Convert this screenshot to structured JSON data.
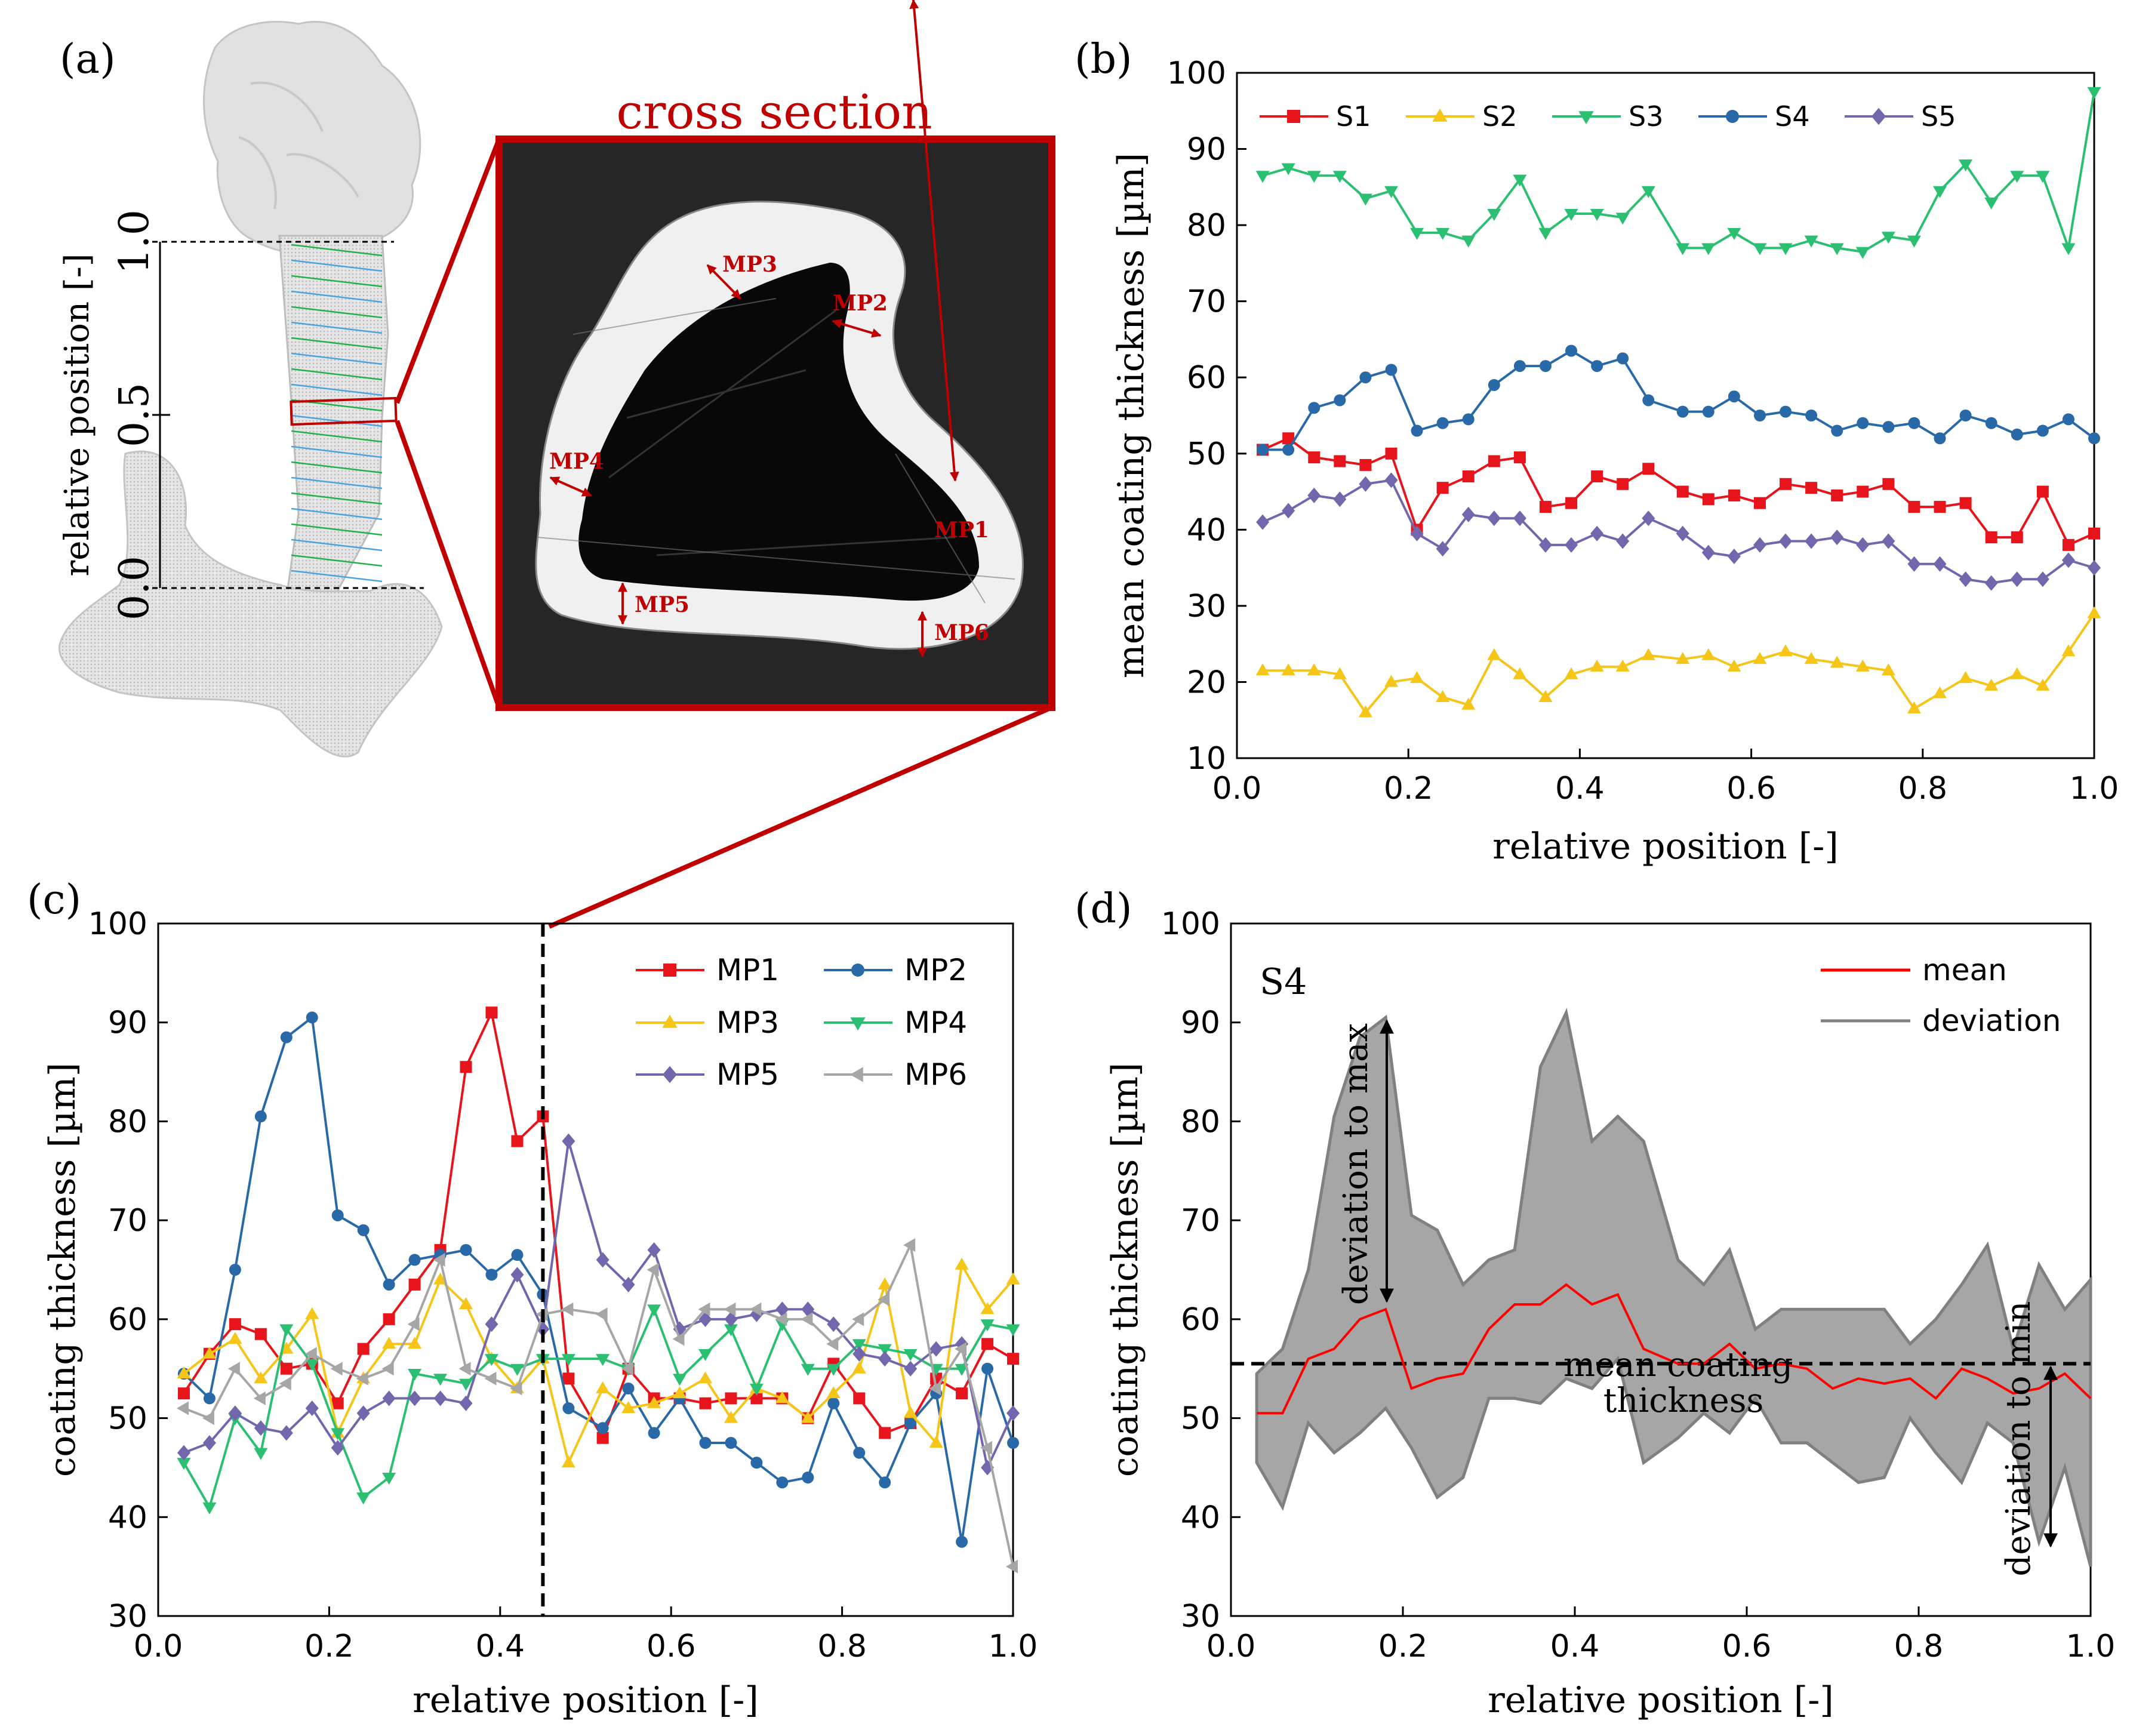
{
  "panel_labels": {
    "a": "(a)",
    "b": "(b)",
    "c": "(c)",
    "d": "(d)"
  },
  "panel_a": {
    "cross_section_title": "cross section",
    "ylabel": "relative position [-]",
    "ticks": [
      "0.0",
      "0.5",
      "1.0"
    ],
    "measurement_points": [
      "MP1",
      "MP2",
      "MP3",
      "MP4",
      "MP5",
      "MP6"
    ],
    "accent_color": "#c00000"
  },
  "chart_data": [
    {
      "id": "b",
      "type": "line",
      "xlabel": "relative position [-]",
      "ylabel": "mean coating thickness [µm]",
      "xlim": [
        0,
        1.0
      ],
      "ylim": [
        10,
        100
      ],
      "xticks": [
        "0.0",
        "0.2",
        "0.4",
        "0.6",
        "0.8",
        "1.0"
      ],
      "yticks": [
        "10",
        "20",
        "30",
        "40",
        "50",
        "60",
        "70",
        "80",
        "90",
        "100"
      ],
      "legend_position": "top-left",
      "x": [
        0.03,
        0.06,
        0.09,
        0.12,
        0.15,
        0.18,
        0.21,
        0.24,
        0.27,
        0.3,
        0.33,
        0.36,
        0.39,
        0.42,
        0.45,
        0.48,
        0.52,
        0.55,
        0.58,
        0.61,
        0.64,
        0.67,
        0.7,
        0.73,
        0.76,
        0.79,
        0.82,
        0.85,
        0.88,
        0.91,
        0.94,
        0.97,
        1.0
      ],
      "series": [
        {
          "name": "S1",
          "color": "#e8141c",
          "marker": "square",
          "values": [
            50.5,
            52,
            49.5,
            49,
            48.5,
            50,
            40,
            45.5,
            47,
            49,
            49.5,
            43,
            43.5,
            47,
            46,
            48,
            45,
            44,
            44.5,
            43.5,
            46,
            45.5,
            44.5,
            45,
            46,
            43,
            43,
            43.5,
            39,
            39,
            45,
            38,
            39.5
          ]
        },
        {
          "name": "S2",
          "color": "#f5c518",
          "marker": "triangle-up",
          "values": [
            21.5,
            21.5,
            21.5,
            21,
            16,
            20,
            20.5,
            18,
            17,
            23.5,
            21,
            18,
            21,
            22,
            22,
            23.5,
            23,
            23.5,
            22,
            23,
            24,
            23,
            22.5,
            22,
            21.5,
            16.5,
            18.5,
            20.5,
            19.5,
            21,
            19.5,
            24,
            29
          ]
        },
        {
          "name": "S3",
          "color": "#2bbf72",
          "marker": "triangle-down",
          "values": [
            86.5,
            87.5,
            86.5,
            86.5,
            83.5,
            84.5,
            79,
            79,
            78,
            81.5,
            86,
            79,
            81.5,
            81.5,
            81,
            84.5,
            77,
            77,
            79,
            77,
            77,
            78,
            77,
            76.5,
            78.5,
            78,
            84.5,
            88,
            83,
            86.5,
            86.5,
            77,
            97.5
          ]
        },
        {
          "name": "S4",
          "color": "#2a69a8",
          "marker": "circle",
          "values": [
            50.5,
            50.5,
            56,
            57,
            60,
            61,
            53,
            54,
            54.5,
            59,
            61.5,
            61.5,
            63.5,
            61.5,
            62.5,
            57,
            55.5,
            55.5,
            57.5,
            55,
            55.5,
            55,
            53,
            54,
            53.5,
            54,
            52,
            55,
            54,
            52.5,
            53,
            54.5,
            52
          ]
        },
        {
          "name": "S5",
          "color": "#7266ad",
          "marker": "diamond",
          "values": [
            41,
            42.5,
            44.5,
            44,
            46,
            46.5,
            39.5,
            37.5,
            42,
            41.5,
            41.5,
            38,
            38,
            39.5,
            38.5,
            41.5,
            39.5,
            37,
            36.5,
            38,
            38.5,
            38.5,
            39,
            38,
            38.5,
            35.5,
            35.5,
            33.5,
            33,
            33.5,
            33.5,
            36,
            35
          ]
        }
      ]
    },
    {
      "id": "c",
      "type": "line",
      "xlabel": "relative position [-]",
      "ylabel": "coating thickness [µm]",
      "xlim": [
        0,
        1.0
      ],
      "ylim": [
        30,
        100
      ],
      "xticks": [
        "0.0",
        "0.2",
        "0.4",
        "0.6",
        "0.8",
        "1.0"
      ],
      "yticks": [
        "30",
        "40",
        "50",
        "60",
        "70",
        "80",
        "90",
        "100"
      ],
      "vline_x": 0.45,
      "legend_position": "top-right",
      "x": [
        0.03,
        0.06,
        0.09,
        0.12,
        0.15,
        0.18,
        0.21,
        0.24,
        0.27,
        0.3,
        0.33,
        0.36,
        0.39,
        0.42,
        0.45,
        0.48,
        0.52,
        0.55,
        0.58,
        0.61,
        0.64,
        0.67,
        0.7,
        0.73,
        0.76,
        0.79,
        0.82,
        0.85,
        0.88,
        0.91,
        0.94,
        0.97,
        1.0
      ],
      "series": [
        {
          "name": "MP1",
          "color": "#e8141c",
          "marker": "square",
          "values": [
            52.5,
            56.5,
            59.5,
            58.5,
            55,
            55.5,
            51.5,
            57,
            60,
            63.5,
            67,
            85.5,
            91,
            78,
            80.5,
            54,
            48,
            55,
            52,
            52,
            51.5,
            52,
            52,
            52,
            50,
            55.5,
            52,
            48.5,
            49.5,
            54,
            52.5,
            57.5,
            56
          ]
        },
        {
          "name": "MP2",
          "color": "#2a69a8",
          "marker": "circle",
          "values": [
            54.5,
            52,
            65,
            80.5,
            88.5,
            90.5,
            70.5,
            69,
            63.5,
            66,
            66.5,
            67,
            64.5,
            66.5,
            62.5,
            51,
            49,
            53,
            48.5,
            52,
            47.5,
            47.5,
            45.5,
            43.5,
            44,
            51.5,
            46.5,
            43.5,
            49.5,
            52.5,
            37.5,
            55,
            47.5
          ]
        },
        {
          "name": "MP3",
          "color": "#f5c518",
          "marker": "triangle-up",
          "values": [
            54.5,
            56.5,
            58,
            54,
            57,
            60.5,
            48.5,
            54,
            57.5,
            57.5,
            64,
            61.5,
            56,
            53,
            56,
            45.5,
            53,
            51,
            51.5,
            52.5,
            54,
            50,
            53,
            52,
            50,
            52.5,
            55,
            63.5,
            50.5,
            47.5,
            65.5,
            61,
            64
          ]
        },
        {
          "name": "MP4",
          "color": "#2bbf72",
          "marker": "triangle-down",
          "values": [
            45.5,
            41,
            50,
            46.5,
            59,
            55.5,
            48.5,
            42,
            44,
            54.5,
            54,
            53.5,
            56,
            55,
            56,
            56,
            56,
            55,
            61,
            54,
            56.5,
            59,
            53,
            59.5,
            55,
            55,
            57.5,
            57,
            56.5,
            55,
            55,
            59.5,
            59
          ]
        },
        {
          "name": "MP5",
          "color": "#7266ad",
          "marker": "diamond",
          "values": [
            46.5,
            47.5,
            50.5,
            49,
            48.5,
            51,
            47,
            50.5,
            52,
            52,
            52,
            51.5,
            59.5,
            64.5,
            59,
            78,
            66,
            63.5,
            67,
            59,
            60,
            60,
            60.5,
            61,
            61,
            59.5,
            56.5,
            56,
            55,
            57,
            57.5,
            45,
            50.5
          ]
        },
        {
          "name": "MP6",
          "color": "#a6a6a6",
          "marker": "triangle-left",
          "values": [
            51,
            50,
            55,
            52,
            53.5,
            56.5,
            55,
            54,
            55,
            59.5,
            66,
            55,
            54,
            53,
            60.5,
            61,
            60.5,
            55,
            65,
            58,
            61,
            61,
            61,
            60,
            60,
            57.5,
            60,
            62,
            67.5,
            53,
            57,
            47,
            35
          ]
        }
      ]
    },
    {
      "id": "d",
      "type": "area",
      "annotation_series": "S4",
      "xlabel": "relative position [-]",
      "ylabel": "coating thickness [µm]",
      "xlim": [
        0,
        1.0
      ],
      "ylim": [
        30,
        100
      ],
      "xticks": [
        "0.0",
        "0.2",
        "0.4",
        "0.6",
        "0.8",
        "1.0"
      ],
      "yticks": [
        "30",
        "40",
        "50",
        "60",
        "70",
        "80",
        "90",
        "100"
      ],
      "mean_line_y": 55.5,
      "legend_position": "top-right",
      "annotations": {
        "max": "deviation to max",
        "min": "deviation to min",
        "mean": "mean coating thickness"
      },
      "x": [
        0.03,
        0.06,
        0.09,
        0.12,
        0.15,
        0.18,
        0.21,
        0.24,
        0.27,
        0.3,
        0.33,
        0.36,
        0.39,
        0.42,
        0.45,
        0.48,
        0.52,
        0.55,
        0.58,
        0.61,
        0.64,
        0.67,
        0.7,
        0.73,
        0.76,
        0.79,
        0.82,
        0.85,
        0.88,
        0.91,
        0.94,
        0.97,
        1.0
      ],
      "series": [
        {
          "name": "mean",
          "color": "#ff0000",
          "values": [
            50.5,
            50.5,
            56,
            57,
            60,
            61,
            53,
            54,
            54.5,
            59,
            61.5,
            61.5,
            63.5,
            61.5,
            62.5,
            57,
            55.5,
            55.5,
            57.5,
            55,
            55.5,
            55,
            53,
            54,
            53.5,
            54,
            52,
            55,
            54,
            52.5,
            53,
            54.5,
            52
          ]
        },
        {
          "name": "deviation",
          "color": "#808080",
          "fill": "#a6a6a6",
          "upper": [
            54.5,
            57,
            65,
            80.5,
            88.5,
            90.5,
            70.5,
            69,
            63.5,
            66,
            67,
            85.5,
            91,
            78,
            80.5,
            78,
            66,
            63.5,
            67,
            59,
            61,
            61,
            61,
            61,
            61,
            57.5,
            60,
            63.5,
            67.5,
            57,
            65.5,
            61,
            64
          ],
          "lower": [
            45.5,
            41,
            49.5,
            46.5,
            48.5,
            51,
            47,
            42,
            44,
            52,
            52,
            51.5,
            54,
            53,
            56,
            45.5,
            48,
            50.5,
            48.5,
            52,
            47.5,
            47.5,
            45.5,
            43.5,
            44,
            50,
            46.5,
            43.5,
            49.5,
            47.5,
            37.5,
            45,
            35
          ]
        }
      ]
    }
  ]
}
